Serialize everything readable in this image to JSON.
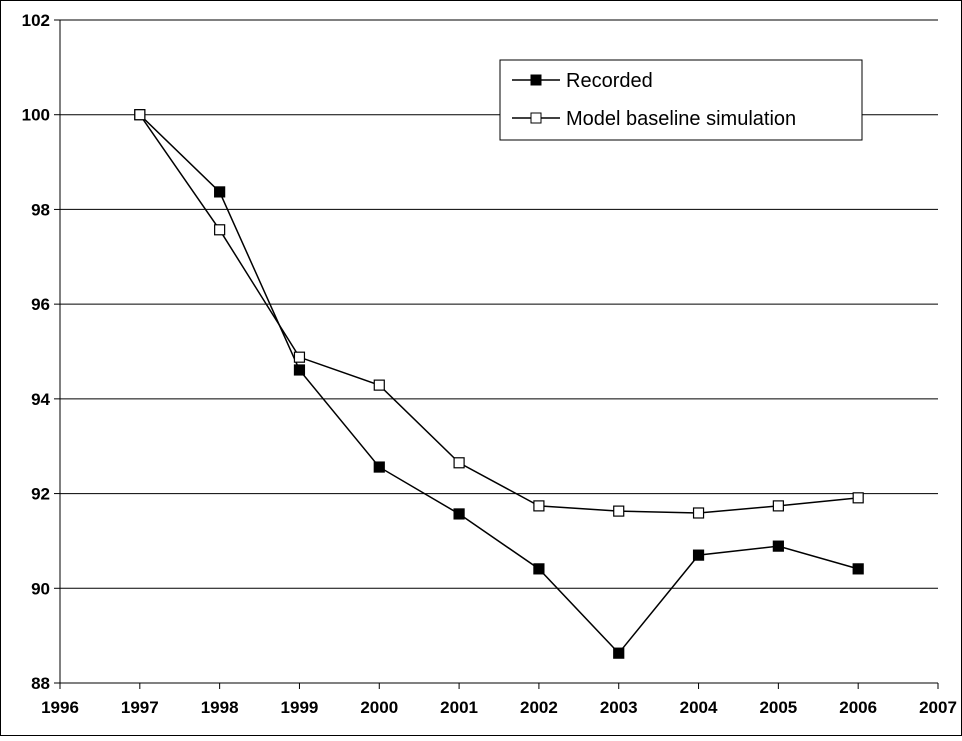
{
  "chart_data": {
    "type": "line",
    "x": [
      1997,
      1998,
      1999,
      2000,
      2001,
      2002,
      2003,
      2004,
      2005,
      2006
    ],
    "series": [
      {
        "name": "Recorded",
        "color": "#000000",
        "marker": "filled-square",
        "values": [
          100,
          98.37,
          94.61,
          92.56,
          91.57,
          90.41,
          88.63,
          90.7,
          90.89,
          90.41
        ]
      },
      {
        "name": "Model baseline simulation",
        "color": "#000000",
        "marker": "open-square",
        "values": [
          100,
          97.57,
          94.88,
          94.29,
          92.65,
          91.74,
          91.63,
          91.59,
          91.74,
          91.91
        ]
      }
    ],
    "xlim": [
      1996,
      2007
    ],
    "xticks": [
      1996,
      1997,
      1998,
      1999,
      2000,
      2001,
      2002,
      2003,
      2004,
      2005,
      2006,
      2007
    ],
    "ylim": [
      88,
      102
    ],
    "yticks": [
      88,
      90,
      92,
      94,
      96,
      98,
      100,
      102
    ],
    "grid": true,
    "legend": "top-right"
  }
}
